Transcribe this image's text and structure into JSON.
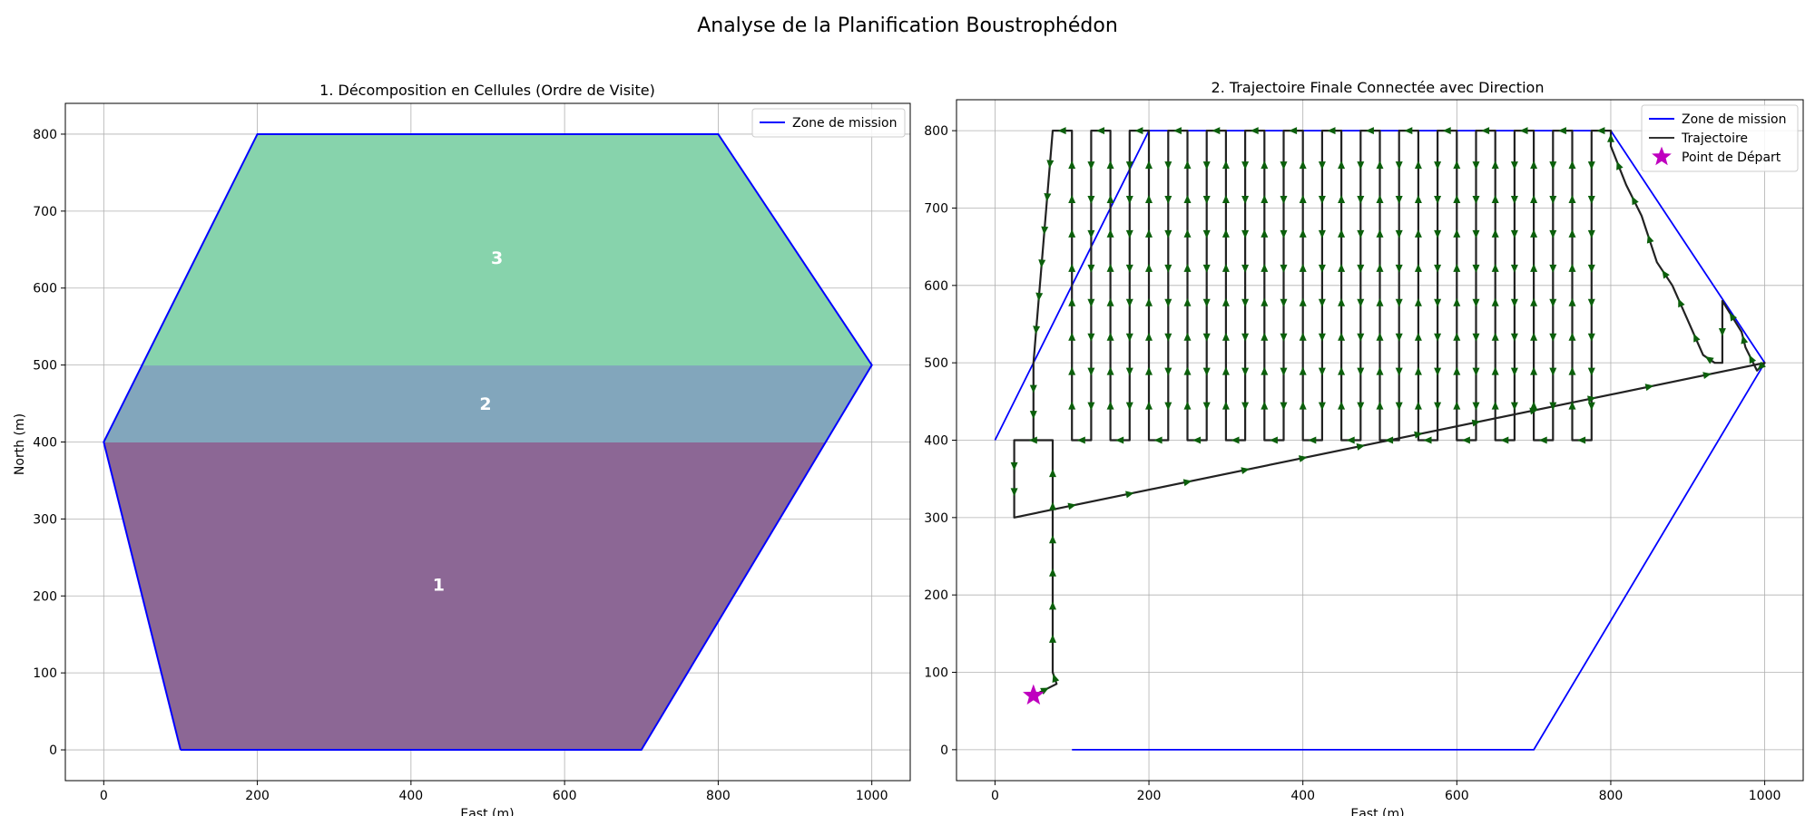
{
  "figure": {
    "title": "Analyse de la Planification Boustrophédon"
  },
  "chart_data": [
    {
      "type": "area",
      "title": "1. Décomposition en Cellules (Ordre de Visite)",
      "xlabel": "East (m)",
      "ylabel": "North (m)",
      "xlim": [
        -50,
        1050
      ],
      "ylim": [
        -40,
        840
      ],
      "xticks": [
        0,
        200,
        400,
        600,
        800,
        1000
      ],
      "yticks": [
        0,
        100,
        200,
        300,
        400,
        500,
        600,
        700,
        800
      ],
      "grid": true,
      "legend": {
        "placement": "top-right",
        "entries": [
          {
            "label": "Zone de mission",
            "color": "#0000ff"
          }
        ]
      },
      "boundary": {
        "name": "Zone de mission",
        "color": "#0000ff",
        "points": [
          [
            100,
            0
          ],
          [
            700,
            0
          ],
          [
            1000,
            500
          ],
          [
            800,
            800
          ],
          [
            200,
            800
          ],
          [
            0,
            400
          ],
          [
            100,
            0
          ]
        ]
      },
      "cells": [
        {
          "label": "1",
          "color": "#8c6795",
          "label_at": [
            436,
            215
          ],
          "points": [
            [
              100,
              0
            ],
            [
              700,
              0
            ],
            [
              940,
              400
            ],
            [
              0,
              400
            ]
          ]
        },
        {
          "label": "2",
          "color": "#82a6bc",
          "label_at": [
            497,
            450
          ],
          "points": [
            [
              0,
              400
            ],
            [
              940,
              400
            ],
            [
              1000,
              500
            ],
            [
              50,
              500
            ]
          ]
        },
        {
          "label": "3",
          "color": "#87d3ac",
          "label_at": [
            512,
            640
          ],
          "points": [
            [
              50,
              500
            ],
            [
              1000,
              500
            ],
            [
              800,
              800
            ],
            [
              200,
              800
            ]
          ]
        }
      ]
    },
    {
      "type": "line",
      "title": "2. Trajectoire Finale Connectée avec Direction",
      "xlabel": "East (m)",
      "ylabel": "",
      "xlim": [
        -50,
        1050
      ],
      "ylim": [
        -40,
        840
      ],
      "xticks": [
        0,
        200,
        400,
        600,
        800,
        1000
      ],
      "yticks": [
        0,
        100,
        200,
        300,
        400,
        500,
        600,
        700,
        800
      ],
      "grid": true,
      "legend": {
        "placement": "top-right",
        "entries": [
          {
            "label": "Zone de mission",
            "color": "#0000ff",
            "marker": "line"
          },
          {
            "label": "Trajectoire",
            "color": "#333333",
            "marker": "line"
          },
          {
            "label": "Point de Départ",
            "color": "#bf00bf",
            "marker": "star"
          }
        ]
      },
      "boundary": {
        "name": "Zone de mission",
        "color": "#0000ff",
        "points": [
          [
            0,
            400
          ],
          [
            200,
            800
          ],
          [
            800,
            800
          ],
          [
            1000,
            500
          ],
          [
            700,
            0
          ],
          [
            100,
            0
          ]
        ]
      },
      "start_point": {
        "name": "Point de Départ",
        "x": 50,
        "y": 70,
        "color": "#bf00bf"
      },
      "trajectory_color": "#222222",
      "arrow_color": "#0b5f0b",
      "trajectory": [
        [
          50,
          70
        ],
        [
          80,
          85
        ],
        [
          75,
          100
        ],
        [
          75,
          400
        ],
        [
          25,
          400
        ],
        [
          25,
          300
        ],
        [
          1000,
          500
        ],
        [
          990,
          490
        ],
        [
          975,
          520
        ],
        [
          970,
          540
        ],
        [
          945,
          580
        ],
        [
          945,
          500
        ],
        [
          935,
          500
        ],
        [
          920,
          510
        ],
        [
          900,
          555
        ],
        [
          880,
          600
        ],
        [
          860,
          630
        ],
        [
          840,
          690
        ],
        [
          820,
          730
        ],
        [
          800,
          780
        ],
        [
          800,
          800
        ],
        [
          775,
          800
        ],
        [
          775,
          400
        ],
        [
          750,
          400
        ],
        [
          750,
          800
        ],
        [
          725,
          800
        ],
        [
          725,
          400
        ],
        [
          700,
          400
        ],
        [
          700,
          800
        ],
        [
          675,
          800
        ],
        [
          675,
          400
        ],
        [
          650,
          400
        ],
        [
          650,
          800
        ],
        [
          625,
          800
        ],
        [
          625,
          400
        ],
        [
          600,
          400
        ],
        [
          600,
          800
        ],
        [
          575,
          800
        ],
        [
          575,
          400
        ],
        [
          550,
          400
        ],
        [
          550,
          800
        ],
        [
          525,
          800
        ],
        [
          525,
          400
        ],
        [
          500,
          400
        ],
        [
          500,
          800
        ],
        [
          475,
          800
        ],
        [
          475,
          400
        ],
        [
          450,
          400
        ],
        [
          450,
          800
        ],
        [
          425,
          800
        ],
        [
          425,
          400
        ],
        [
          400,
          400
        ],
        [
          400,
          800
        ],
        [
          375,
          800
        ],
        [
          375,
          400
        ],
        [
          350,
          400
        ],
        [
          350,
          800
        ],
        [
          325,
          800
        ],
        [
          325,
          400
        ],
        [
          300,
          400
        ],
        [
          300,
          800
        ],
        [
          275,
          800
        ],
        [
          275,
          400
        ],
        [
          250,
          400
        ],
        [
          250,
          800
        ],
        [
          225,
          800
        ],
        [
          225,
          400
        ],
        [
          200,
          400
        ],
        [
          200,
          800
        ],
        [
          175,
          800
        ],
        [
          175,
          400
        ],
        [
          150,
          400
        ],
        [
          150,
          800
        ],
        [
          125,
          800
        ],
        [
          125,
          400
        ],
        [
          100,
          400
        ],
        [
          100,
          800
        ],
        [
          75,
          800
        ],
        [
          50,
          500
        ],
        [
          50,
          400
        ]
      ]
    }
  ]
}
